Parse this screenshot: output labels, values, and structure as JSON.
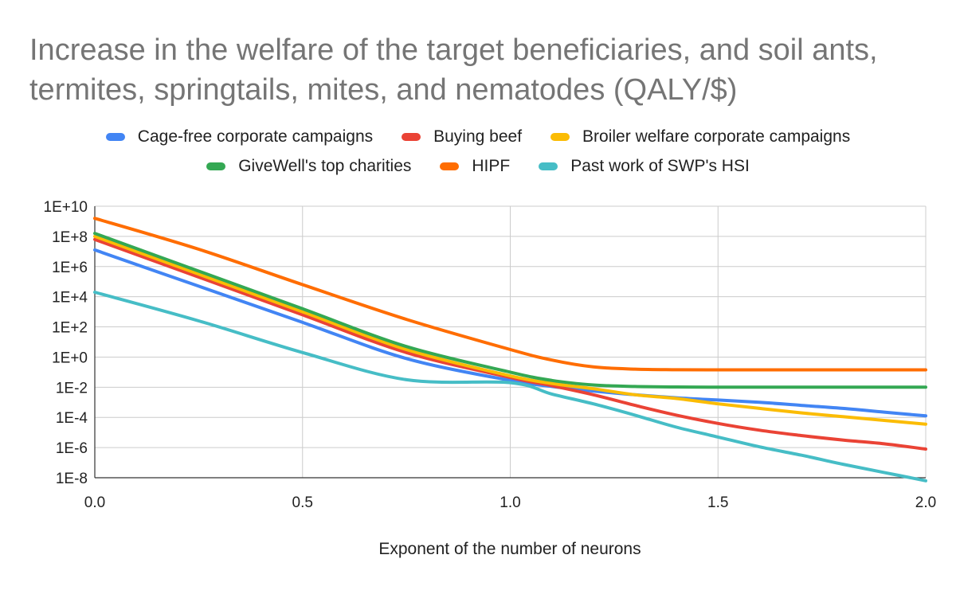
{
  "chart_data": {
    "type": "line",
    "title": "Increase in the welfare of the target beneficiaries, and soil ants, termites, springtails, mites, and nematodes (QALY/$)",
    "xlabel": "Exponent of the number of neurons",
    "ylabel": "",
    "yscale": "log",
    "xlim": [
      0,
      2
    ],
    "ylim_log10": [
      -8,
      10
    ],
    "x_ticks": [
      "0.0",
      "0.5",
      "1.0",
      "1.5",
      "2.0"
    ],
    "x_tick_values": [
      0,
      0.5,
      1,
      1.5,
      2
    ],
    "y_ticks": [
      "1E+10",
      "1E+8",
      "1E+6",
      "1E+4",
      "1E+2",
      "1E+0",
      "1E-2",
      "1E-4",
      "1E-6",
      "1E-8"
    ],
    "y_tick_log_values": [
      10,
      8,
      6,
      4,
      2,
      0,
      -2,
      -4,
      -6,
      -8
    ],
    "grid": true,
    "legend_position": "top",
    "x": [
      0,
      0.25,
      0.5,
      0.75,
      1.0,
      1.1,
      1.2,
      1.3,
      1.4,
      1.5,
      1.6,
      1.7,
      1.8,
      1.9,
      2.0
    ],
    "series": [
      {
        "name": "Cage-free corporate campaigns",
        "color": "#4285F4",
        "log10_values": [
          7.1,
          4.7,
          2.3,
          -0.1,
          -1.55,
          -1.95,
          -2.25,
          -2.5,
          -2.7,
          -2.85,
          -3.0,
          -3.2,
          -3.4,
          -3.65,
          -3.9
        ]
      },
      {
        "name": "Buying beef",
        "color": "#EA4335",
        "log10_values": [
          7.8,
          5.3,
          2.8,
          0.3,
          -1.35,
          -1.9,
          -2.5,
          -3.2,
          -3.85,
          -4.4,
          -4.85,
          -5.2,
          -5.5,
          -5.75,
          -6.1
        ]
      },
      {
        "name": "Broiler welfare corporate campaigns",
        "color": "#FBBC04",
        "log10_values": [
          8.0,
          5.5,
          3.0,
          0.5,
          -1.25,
          -1.75,
          -2.1,
          -2.5,
          -2.75,
          -3.1,
          -3.4,
          -3.7,
          -3.95,
          -4.2,
          -4.45
        ]
      },
      {
        "name": "GiveWell's top charities",
        "color": "#34A853",
        "log10_values": [
          8.2,
          5.7,
          3.2,
          0.7,
          -1.0,
          -1.55,
          -1.85,
          -1.95,
          -1.98,
          -2.0,
          -2.0,
          -2.0,
          -2.0,
          -2.0,
          -2.0
        ]
      },
      {
        "name": "HIPF",
        "color": "#FF6D01",
        "log10_values": [
          9.2,
          7.15,
          4.8,
          2.5,
          0.5,
          -0.2,
          -0.65,
          -0.8,
          -0.84,
          -0.85,
          -0.85,
          -0.85,
          -0.85,
          -0.85,
          -0.85
        ]
      },
      {
        "name": "Past work of SWP's HSI",
        "color": "#46BDC6",
        "log10_values": [
          4.3,
          2.4,
          0.3,
          -1.5,
          -1.7,
          -2.45,
          -3.1,
          -3.85,
          -4.65,
          -5.3,
          -5.95,
          -6.5,
          -7.1,
          -7.65,
          -8.2
        ]
      }
    ]
  }
}
